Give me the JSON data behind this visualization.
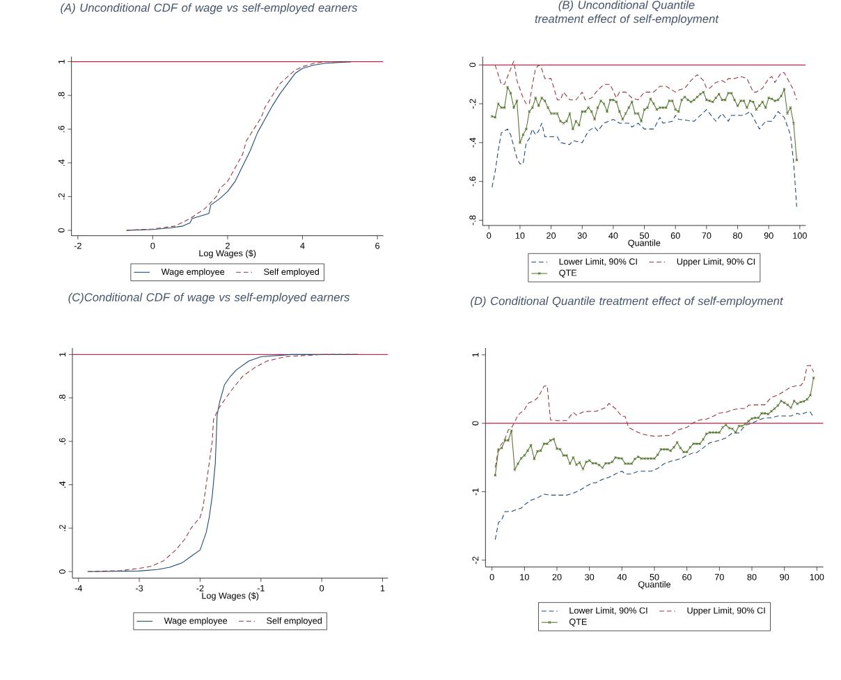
{
  "chart_data": [
    {
      "type": "line",
      "title": "(A) Unconditional CDF of wage vs self-employed earners",
      "xlabel": "Log Wages ($)",
      "xlim": [
        -2.17,
        6.16
      ],
      "ylim": [
        -0.032,
        1.03
      ],
      "xticks": [
        -2,
        0,
        2,
        4,
        6
      ],
      "yticks": [
        0,
        {
          "value": 0.2,
          "label": ".2"
        },
        {
          "value": 0.4,
          "label": ".4"
        },
        {
          "value": 0.6,
          "label": ".6"
        },
        {
          "value": 0.8,
          "label": ".8"
        },
        1
      ],
      "legend": "bottom",
      "ref_lines": [
        {
          "axis": "y",
          "value": 1,
          "color": "#d01c3c"
        }
      ],
      "series": [
        {
          "name": "Wage employee",
          "color": "#1a476f",
          "line_style": "solid",
          "x": [
            -0.7,
            0,
            0.5,
            0.8,
            1.0,
            1.05,
            1.5,
            1.55,
            1.8,
            2.0,
            2.2,
            2.4,
            2.6,
            2.8,
            3.0,
            3.2,
            3.4,
            3.6,
            3.8,
            4.0,
            4.3,
            4.6,
            5.3
          ],
          "values": [
            0,
            0.005,
            0.015,
            0.025,
            0.045,
            0.07,
            0.1,
            0.15,
            0.19,
            0.23,
            0.29,
            0.38,
            0.47,
            0.58,
            0.66,
            0.74,
            0.81,
            0.87,
            0.93,
            0.96,
            0.98,
            0.99,
            1.0
          ]
        },
        {
          "name": "Self employed",
          "color": "#90353b",
          "line_style": "dashed",
          "x": [
            -0.7,
            0,
            0.6,
            1.0,
            1.4,
            1.7,
            1.8,
            2.0,
            2.2,
            2.4,
            2.5,
            2.7,
            2.9,
            3.0,
            3.2,
            3.4,
            3.6,
            3.8,
            4.0,
            4.3,
            4.6,
            5.3
          ],
          "values": [
            0,
            0.008,
            0.025,
            0.07,
            0.13,
            0.2,
            0.25,
            0.29,
            0.37,
            0.45,
            0.53,
            0.6,
            0.67,
            0.73,
            0.8,
            0.87,
            0.91,
            0.95,
            0.97,
            0.99,
            1.0,
            1.0
          ]
        }
      ]
    },
    {
      "type": "line",
      "title": "(B) Unconditional Quantile treatment effect of self-employment",
      "xlabel": "Quantile",
      "xlim": [
        -2,
        101.9
      ],
      "ylim": [
        -0.827,
        0.043
      ],
      "xticks": [
        0,
        10,
        20,
        30,
        40,
        50,
        60,
        70,
        80,
        90,
        100
      ],
      "yticks": [
        {
          "value": -0.8,
          "label": "-.8"
        },
        {
          "value": -0.6,
          "label": "-.6"
        },
        {
          "value": -0.4,
          "label": "-.4"
        },
        {
          "value": -0.2,
          "label": "-.2"
        },
        0
      ],
      "legend": "bottom",
      "ref_lines": [
        {
          "axis": "y",
          "value": 0,
          "color": "#d01c3c"
        }
      ],
      "series": [
        {
          "name": "Lower Limit, 90% CI",
          "color": "#1a476f",
          "line_style": "dashed",
          "x": [
            1,
            2,
            3,
            4,
            6,
            7,
            8,
            9,
            10,
            11,
            12,
            13,
            14,
            15,
            16,
            17,
            18,
            22,
            23,
            26,
            27,
            30,
            32,
            34,
            35,
            37,
            40,
            42,
            45,
            46,
            48,
            50,
            53,
            55,
            56,
            59,
            60,
            61,
            66,
            70,
            73,
            75,
            77,
            78,
            82,
            84,
            86,
            87,
            89,
            91,
            93,
            95,
            97,
            98,
            99
          ],
          "values": [
            -0.63,
            -0.55,
            -0.44,
            -0.35,
            -0.33,
            -0.36,
            -0.42,
            -0.48,
            -0.51,
            -0.51,
            -0.4,
            -0.38,
            -0.33,
            -0.36,
            -0.34,
            -0.3,
            -0.37,
            -0.37,
            -0.4,
            -0.41,
            -0.39,
            -0.4,
            -0.34,
            -0.32,
            -0.34,
            -0.3,
            -0.28,
            -0.3,
            -0.3,
            -0.32,
            -0.3,
            -0.33,
            -0.33,
            -0.27,
            -0.3,
            -0.29,
            -0.26,
            -0.28,
            -0.29,
            -0.23,
            -0.29,
            -0.25,
            -0.29,
            -0.26,
            -0.26,
            -0.24,
            -0.3,
            -0.33,
            -0.29,
            -0.29,
            -0.24,
            -0.27,
            -0.36,
            -0.5,
            -0.73
          ]
        },
        {
          "name": "Upper Limit, 90% CI",
          "color": "#90353b",
          "line_style": "dashed",
          "x": [
            2,
            3,
            4,
            5,
            6,
            8,
            9,
            11,
            12,
            13,
            14,
            15,
            16,
            17,
            18,
            20,
            22,
            23,
            24,
            26,
            28,
            30,
            31,
            33,
            35,
            37,
            39,
            41,
            42,
            44,
            46,
            48,
            50,
            53,
            55,
            57,
            59,
            60,
            61,
            63,
            65,
            67,
            69,
            70,
            71,
            73,
            75,
            76,
            77,
            79,
            81,
            83,
            85,
            86,
            88,
            90,
            91,
            92,
            94,
            95,
            97,
            98,
            99
          ],
          "values": [
            0.0,
            -0.05,
            -0.1,
            -0.1,
            -0.06,
            0.02,
            -0.08,
            -0.17,
            -0.2,
            -0.2,
            -0.1,
            -0.02,
            0.0,
            -0.02,
            -0.07,
            -0.07,
            -0.18,
            -0.18,
            -0.14,
            -0.18,
            -0.18,
            -0.14,
            -0.18,
            -0.17,
            -0.13,
            -0.1,
            -0.1,
            -0.17,
            -0.14,
            -0.14,
            -0.17,
            -0.18,
            -0.14,
            -0.14,
            -0.11,
            -0.11,
            -0.13,
            -0.14,
            -0.13,
            -0.12,
            -0.08,
            -0.05,
            -0.08,
            -0.12,
            -0.12,
            -0.09,
            -0.08,
            -0.09,
            -0.07,
            -0.07,
            -0.06,
            -0.07,
            -0.14,
            -0.14,
            -0.12,
            -0.07,
            -0.06,
            -0.09,
            -0.04,
            -0.04,
            -0.1,
            -0.13,
            -0.18
          ]
        },
        {
          "name": "QTE",
          "color": "#55752f",
          "line_style": "solid",
          "marker": "cross",
          "x": [
            1,
            2,
            3,
            4,
            5,
            6,
            7,
            8,
            9,
            10,
            11,
            12,
            13,
            14,
            15,
            16,
            17,
            18,
            19,
            20,
            21,
            22,
            23,
            24,
            25,
            26,
            27,
            28,
            29,
            30,
            31,
            32,
            33,
            34,
            35,
            36,
            37,
            38,
            39,
            40,
            41,
            42,
            43,
            44,
            45,
            46,
            47,
            48,
            49,
            50,
            51,
            52,
            53,
            54,
            55,
            56,
            57,
            58,
            59,
            60,
            61,
            62,
            63,
            64,
            65,
            66,
            67,
            68,
            69,
            70,
            71,
            72,
            73,
            74,
            75,
            76,
            77,
            78,
            79,
            80,
            81,
            82,
            83,
            84,
            85,
            86,
            87,
            88,
            89,
            90,
            91,
            92,
            93,
            94,
            95,
            96,
            97,
            98,
            99
          ],
          "values": [
            -0.265,
            -0.27,
            -0.2,
            -0.22,
            -0.22,
            -0.115,
            -0.145,
            -0.22,
            -0.185,
            -0.4,
            -0.36,
            -0.33,
            -0.24,
            -0.22,
            -0.17,
            -0.21,
            -0.17,
            -0.185,
            -0.22,
            -0.25,
            -0.25,
            -0.25,
            -0.29,
            -0.3,
            -0.29,
            -0.25,
            -0.33,
            -0.29,
            -0.31,
            -0.24,
            -0.24,
            -0.22,
            -0.24,
            -0.28,
            -0.22,
            -0.185,
            -0.2,
            -0.24,
            -0.18,
            -0.18,
            -0.19,
            -0.24,
            -0.28,
            -0.25,
            -0.22,
            -0.19,
            -0.25,
            -0.25,
            -0.29,
            -0.23,
            -0.22,
            -0.175,
            -0.2,
            -0.23,
            -0.22,
            -0.22,
            -0.22,
            -0.185,
            -0.185,
            -0.23,
            -0.24,
            -0.18,
            -0.165,
            -0.18,
            -0.19,
            -0.18,
            -0.165,
            -0.15,
            -0.14,
            -0.18,
            -0.185,
            -0.19,
            -0.17,
            -0.15,
            -0.18,
            -0.18,
            -0.145,
            -0.145,
            -0.18,
            -0.21,
            -0.185,
            -0.185,
            -0.22,
            -0.185,
            -0.19,
            -0.23,
            -0.21,
            -0.19,
            -0.22,
            -0.17,
            -0.175,
            -0.185,
            -0.18,
            -0.16,
            -0.125,
            -0.25,
            -0.22,
            -0.3,
            -0.49
          ]
        }
      ]
    },
    {
      "type": "line",
      "title": "(C)Conditional  CDF of wage vs self-employed earners",
      "xlabel": "Log Wages ($)",
      "xlim": [
        -4.1,
        1.09
      ],
      "ylim": [
        -0.03,
        1.03
      ],
      "xticks": [
        -4,
        -3,
        -2,
        -1,
        0,
        1
      ],
      "yticks": [
        0,
        {
          "value": 0.2,
          "label": ".2"
        },
        {
          "value": 0.4,
          "label": ".4"
        },
        {
          "value": 0.6,
          "label": ".6"
        },
        {
          "value": 0.8,
          "label": ".8"
        },
        1
      ],
      "legend": "bottom",
      "ref_lines": [
        {
          "axis": "y",
          "value": 1,
          "color": "#d01c3c"
        }
      ],
      "series": [
        {
          "name": "Wage employee",
          "color": "#1a476f",
          "line_style": "solid",
          "x": [
            -3.85,
            -3,
            -2.7,
            -2.5,
            -2.3,
            -2.15,
            -2.0,
            -1.9,
            -1.85,
            -1.8,
            -1.75,
            -1.72,
            -1.68,
            -1.6,
            -1.5,
            -1.4,
            -1.2,
            -1.0,
            -0.5,
            0.6
          ],
          "values": [
            0,
            0.003,
            0.01,
            0.02,
            0.04,
            0.07,
            0.1,
            0.18,
            0.25,
            0.35,
            0.5,
            0.72,
            0.78,
            0.86,
            0.9,
            0.93,
            0.97,
            0.99,
            1.0,
            1.0
          ]
        },
        {
          "name": "Self employed",
          "color": "#90353b",
          "line_style": "dashed",
          "x": [
            -3.85,
            -3.3,
            -3,
            -2.8,
            -2.6,
            -2.4,
            -2.25,
            -2.15,
            -2.0,
            -1.95,
            -1.9,
            -1.85,
            -1.8,
            -1.78,
            -1.7,
            -1.6,
            -1.5,
            -1.3,
            -1.1,
            -0.9,
            -0.6,
            0,
            0.6
          ],
          "values": [
            0,
            0.005,
            0.015,
            0.025,
            0.05,
            0.1,
            0.15,
            0.2,
            0.25,
            0.3,
            0.4,
            0.5,
            0.6,
            0.7,
            0.75,
            0.79,
            0.83,
            0.9,
            0.94,
            0.97,
            0.99,
            1.0,
            1.0
          ]
        }
      ]
    },
    {
      "type": "line",
      "title": "(D) Conditional Quantile treatment effect of self-employment",
      "xlabel": "Quantile",
      "xlim": [
        -2,
        102
      ],
      "ylim": [
        -2.1,
        1.1
      ],
      "xticks": [
        0,
        10,
        20,
        30,
        40,
        50,
        60,
        70,
        80,
        90,
        100
      ],
      "yticks": [
        -2,
        -1,
        0,
        1
      ],
      "legend": "bottom",
      "ref_lines": [
        {
          "axis": "y",
          "value": 0,
          "color": "#d01c3c"
        }
      ],
      "series": [
        {
          "name": "Lower Limit, 90% CI",
          "color": "#1a476f",
          "line_style": "dashed",
          "x": [
            1,
            2,
            3,
            4,
            6,
            7,
            9,
            10,
            12,
            14,
            16,
            18,
            23,
            25,
            27,
            29,
            31,
            32,
            34,
            36,
            38,
            40,
            41,
            43,
            45,
            49,
            51,
            53,
            55,
            58,
            60,
            62,
            63,
            65,
            67,
            70,
            72,
            74,
            76,
            78,
            80,
            82,
            84,
            86,
            88,
            90,
            92,
            94,
            95,
            97,
            98,
            99
          ],
          "values": [
            -1.7,
            -1.45,
            -1.41,
            -1.29,
            -1.29,
            -1.27,
            -1.24,
            -1.19,
            -1.125,
            -1.09,
            -1.035,
            -1.05,
            -1.05,
            -1.02,
            -0.98,
            -0.92,
            -0.87,
            -0.87,
            -0.82,
            -0.79,
            -0.74,
            -0.7,
            -0.74,
            -0.74,
            -0.7,
            -0.7,
            -0.66,
            -0.59,
            -0.555,
            -0.52,
            -0.47,
            -0.43,
            -0.43,
            -0.36,
            -0.285,
            -0.25,
            -0.215,
            -0.14,
            -0.14,
            -0.03,
            0.0,
            0.045,
            0.08,
            0.08,
            0.105,
            0.105,
            0.105,
            0.145,
            0.125,
            0.165,
            0.165,
            0.085
          ]
        },
        {
          "name": "Upper Limit, 90% CI",
          "color": "#90353b",
          "line_style": "dashed",
          "x": [
            1,
            2,
            4,
            5,
            6,
            7,
            8,
            9,
            10,
            11,
            13,
            14,
            15,
            16,
            17,
            18,
            20,
            23,
            25,
            26,
            28,
            30,
            32,
            33,
            35,
            36,
            38,
            40,
            41,
            42,
            44,
            46,
            48,
            50,
            55,
            57,
            60,
            62,
            64,
            66,
            68,
            70,
            72,
            74,
            76,
            78,
            79,
            82,
            84,
            86,
            88,
            90,
            92,
            94,
            95,
            96,
            97,
            98,
            99
          ],
          "values": [
            -0.645,
            -0.37,
            -0.23,
            -0.1,
            -0.07,
            0.02,
            0.12,
            0.16,
            0.195,
            0.29,
            0.33,
            0.37,
            0.45,
            0.54,
            0.55,
            0.05,
            0.04,
            0.04,
            0.16,
            0.12,
            0.165,
            0.175,
            0.175,
            0.19,
            0.23,
            0.29,
            0.215,
            0.1,
            0.1,
            -0.06,
            -0.11,
            -0.155,
            -0.175,
            -0.19,
            -0.175,
            -0.1,
            -0.06,
            0.01,
            0.05,
            0.06,
            0.1,
            0.15,
            0.16,
            0.195,
            0.215,
            0.215,
            0.265,
            0.27,
            0.27,
            0.38,
            0.41,
            0.47,
            0.53,
            0.55,
            0.55,
            0.605,
            0.84,
            0.845,
            0.75
          ]
        },
        {
          "name": "QTE",
          "color": "#55752f",
          "line_style": "solid",
          "marker": "cross",
          "x": [
            1,
            2,
            3,
            4,
            5,
            6,
            7,
            8,
            9,
            10,
            11,
            12,
            13,
            14,
            15,
            16,
            17,
            18,
            19,
            20,
            21,
            22,
            23,
            24,
            25,
            26,
            27,
            28,
            29,
            30,
            31,
            32,
            33,
            34,
            35,
            36,
            37,
            38,
            39,
            40,
            41,
            42,
            43,
            44,
            45,
            46,
            47,
            48,
            49,
            50,
            51,
            52,
            53,
            54,
            55,
            56,
            57,
            58,
            59,
            60,
            61,
            62,
            63,
            64,
            65,
            66,
            67,
            68,
            69,
            70,
            71,
            72,
            73,
            74,
            75,
            76,
            77,
            78,
            79,
            80,
            81,
            82,
            83,
            84,
            85,
            86,
            87,
            88,
            89,
            90,
            91,
            92,
            93,
            94,
            95,
            96,
            97,
            98,
            99
          ],
          "values": [
            -0.76,
            -0.39,
            -0.36,
            -0.25,
            -0.25,
            -0.11,
            -0.68,
            -0.59,
            -0.51,
            -0.47,
            -0.4,
            -0.32,
            -0.52,
            -0.41,
            -0.4,
            -0.3,
            -0.3,
            -0.25,
            -0.23,
            -0.37,
            -0.38,
            -0.47,
            -0.47,
            -0.59,
            -0.5,
            -0.605,
            -0.575,
            -0.67,
            -0.565,
            -0.545,
            -0.585,
            -0.585,
            -0.61,
            -0.65,
            -0.585,
            -0.585,
            -0.565,
            -0.5,
            -0.51,
            -0.515,
            -0.59,
            -0.59,
            -0.59,
            -0.52,
            -0.49,
            -0.515,
            -0.515,
            -0.515,
            -0.515,
            -0.515,
            -0.46,
            -0.38,
            -0.38,
            -0.38,
            -0.4,
            -0.35,
            -0.28,
            -0.36,
            -0.42,
            -0.42,
            -0.35,
            -0.3,
            -0.3,
            -0.3,
            -0.235,
            -0.155,
            -0.135,
            -0.135,
            -0.135,
            -0.135,
            -0.06,
            -0.025,
            -0.07,
            -0.08,
            -0.135,
            -0.04,
            -0.04,
            -0.01,
            0.03,
            0.07,
            0.08,
            0.08,
            0.145,
            0.145,
            0.135,
            0.175,
            0.215,
            0.26,
            0.325,
            0.3,
            0.27,
            0.225,
            0.325,
            0.285,
            0.31,
            0.32,
            0.35,
            0.41,
            0.665
          ]
        }
      ]
    }
  ]
}
